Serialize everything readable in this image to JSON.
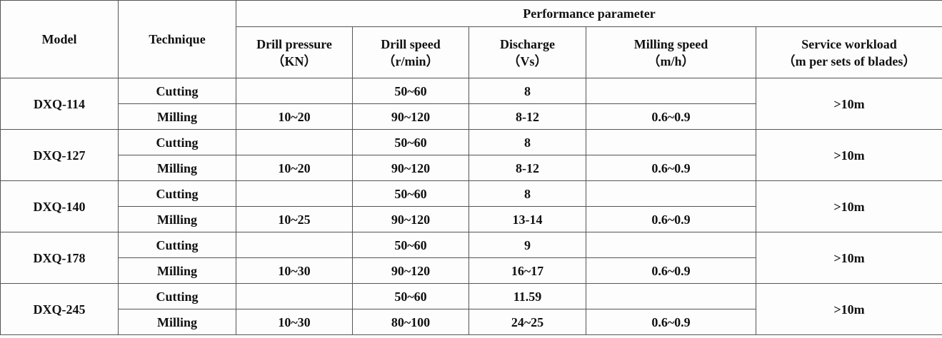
{
  "table": {
    "header": {
      "model": "Model",
      "technique": "Technique",
      "group": "Performance parameter",
      "columns": [
        {
          "label": "Drill pressure",
          "unit": "（KN）"
        },
        {
          "label": "Drill speed",
          "unit": "（r/min）"
        },
        {
          "label": "Discharge",
          "unit": "（Vs）"
        },
        {
          "label": "Milling speed",
          "unit": "（m/h）"
        },
        {
          "label": "Service workload",
          "unit": "（m per sets of blades）"
        }
      ]
    },
    "models": [
      {
        "model": "DXQ-114",
        "service": ">10m",
        "rows": [
          {
            "technique": "Cutting",
            "cells": [
              null,
              "50~60",
              "8",
              null
            ]
          },
          {
            "technique": "Milling",
            "cells": [
              "10~20",
              "90~120",
              "8-12",
              "0.6~0.9"
            ]
          }
        ]
      },
      {
        "model": "DXQ-127",
        "service": ">10m",
        "rows": [
          {
            "technique": "Cutting",
            "cells": [
              null,
              "50~60",
              "8",
              null
            ]
          },
          {
            "technique": "Milling",
            "cells": [
              "10~20",
              "90~120",
              "8-12",
              "0.6~0.9"
            ]
          }
        ]
      },
      {
        "model": "DXQ-140",
        "service": ">10m",
        "rows": [
          {
            "technique": "Cutting",
            "cells": [
              null,
              "50~60",
              "8",
              null
            ]
          },
          {
            "technique": "Milling",
            "cells": [
              "10~25",
              "90~120",
              "13-14",
              "0.6~0.9"
            ]
          }
        ]
      },
      {
        "model": "DXQ-178",
        "service": ">10m",
        "rows": [
          {
            "technique": "Cutting",
            "cells": [
              null,
              "50~60",
              "9",
              null
            ]
          },
          {
            "technique": "Milling",
            "cells": [
              "10~30",
              "90~120",
              "16~17",
              "0.6~0.9"
            ]
          }
        ]
      },
      {
        "model": "DXQ-245",
        "service": ">10m",
        "rows": [
          {
            "technique": "Cutting",
            "cells": [
              null,
              "50~60",
              "11.59",
              null
            ]
          },
          {
            "technique": "Milling",
            "cells": [
              "10~30",
              "80~100",
              "24~25",
              "0.6~0.9"
            ]
          }
        ]
      }
    ]
  }
}
